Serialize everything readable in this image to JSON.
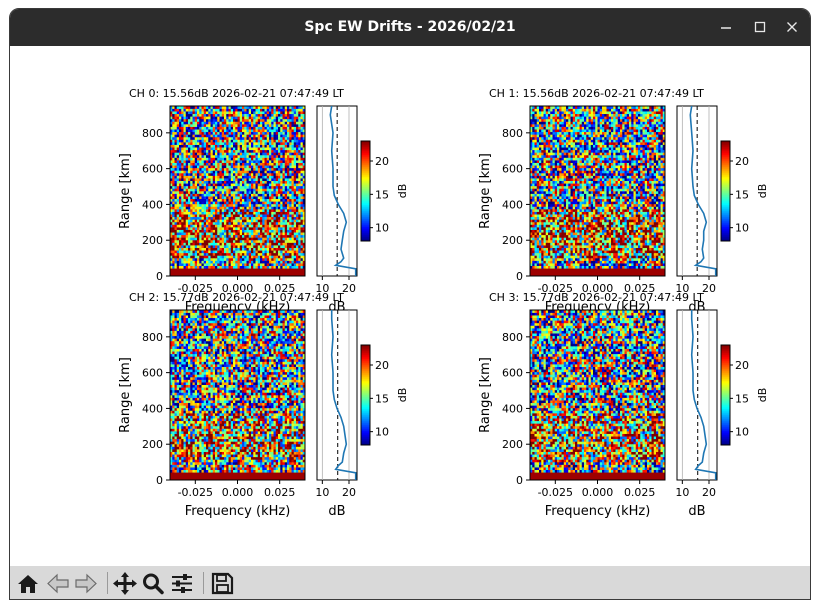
{
  "window": {
    "title": "Spc EW Drifts - 2026/02/21",
    "buttons": [
      "minimize",
      "maximize",
      "close"
    ]
  },
  "figure": {
    "ylabel": "Range [km]",
    "xlabel": "Frequency (kHz)",
    "profile_xlabel": "dB",
    "colorbar_label": "dB",
    "colorbar_ticks": [
      "10",
      "15",
      "20"
    ],
    "yticks": [
      "0",
      "200",
      "400",
      "600",
      "800"
    ],
    "xticks": [
      "-0.025",
      "0.000",
      "0.025"
    ],
    "profile_xticks": [
      "10",
      "20"
    ],
    "panels": [
      {
        "title": "CH 0: 15.56dB 2026-02-21 07:47:49 LT"
      },
      {
        "title": "CH 1: 15.56dB 2026-02-21 07:47:49 LT"
      },
      {
        "title": "CH 2: 15.77dB 2026-02-21 07:47:49 LT"
      },
      {
        "title": "CH 3: 15.77dB 2026-02-21 07:47:49 LT"
      }
    ]
  },
  "chart_data": {
    "type": "heatmap",
    "x_axis": {
      "label": "Frequency (kHz)",
      "range": [
        -0.04,
        0.04
      ],
      "ticks": [
        -0.025,
        0.0,
        0.025
      ]
    },
    "y_axis": {
      "label": "Range [km]",
      "range": [
        0,
        950
      ],
      "ticks": [
        0,
        200,
        400,
        600,
        800
      ]
    },
    "colorbar": {
      "label": "dB",
      "range": [
        8,
        23
      ],
      "ticks": [
        10,
        15,
        20
      ],
      "colormap": "jet"
    },
    "profile": {
      "xlabel": "dB",
      "xlim": [
        8,
        23
      ],
      "ticks": [
        10,
        20
      ]
    },
    "panels": [
      {
        "title": "CH 0: 15.56dB 2026-02-21 07:47:49 LT",
        "noise_level_db": 15.56,
        "profile": {
          "range_km": [
            0,
            40,
            60,
            80,
            100,
            150,
            200,
            250,
            300,
            350,
            400,
            450,
            500,
            600,
            700,
            800,
            900,
            950
          ],
          "db": [
            22.5,
            22.5,
            15,
            17,
            18,
            17,
            17.5,
            18,
            19,
            18,
            16,
            14.5,
            14,
            14,
            13.5,
            14,
            13,
            13.5
          ]
        }
      },
      {
        "title": "CH 1: 15.56dB 2026-02-21 07:47:49 LT",
        "noise_level_db": 15.56,
        "profile": {
          "range_km": [
            0,
            40,
            60,
            80,
            100,
            150,
            200,
            250,
            300,
            350,
            400,
            450,
            500,
            600,
            700,
            800,
            900,
            950
          ],
          "db": [
            22.5,
            22.5,
            15,
            17,
            18,
            17.5,
            18,
            18,
            19,
            18,
            16,
            14.5,
            14,
            13.5,
            14,
            13.5,
            13,
            13.5
          ]
        }
      },
      {
        "title": "CH 2: 15.77dB 2026-02-21 07:47:49 LT",
        "noise_level_db": 15.77,
        "profile": {
          "range_km": [
            0,
            40,
            60,
            80,
            100,
            150,
            200,
            250,
            300,
            350,
            400,
            450,
            500,
            600,
            700,
            800,
            900,
            950
          ],
          "db": [
            22.5,
            22.5,
            15,
            16,
            17.5,
            18,
            19,
            18.5,
            18,
            17,
            15.5,
            14.5,
            14,
            14,
            13.5,
            14,
            13.5,
            13.5
          ]
        }
      },
      {
        "title": "CH 3: 15.77dB 2026-02-21 07:47:49 LT",
        "noise_level_db": 15.77,
        "profile": {
          "range_km": [
            0,
            40,
            60,
            80,
            100,
            150,
            200,
            250,
            300,
            350,
            400,
            450,
            500,
            600,
            700,
            800,
            900,
            950
          ],
          "db": [
            22.5,
            22.5,
            15,
            16,
            17.5,
            18,
            19,
            18.5,
            18,
            17,
            15.5,
            14.5,
            14,
            14,
            13.5,
            14,
            13.5,
            13.5
          ]
        }
      }
    ]
  },
  "toolbar": {
    "icons": [
      "home-icon",
      "back-icon",
      "forward-icon",
      "pan-icon",
      "zoom-icon",
      "configure-icon",
      "save-icon"
    ]
  }
}
